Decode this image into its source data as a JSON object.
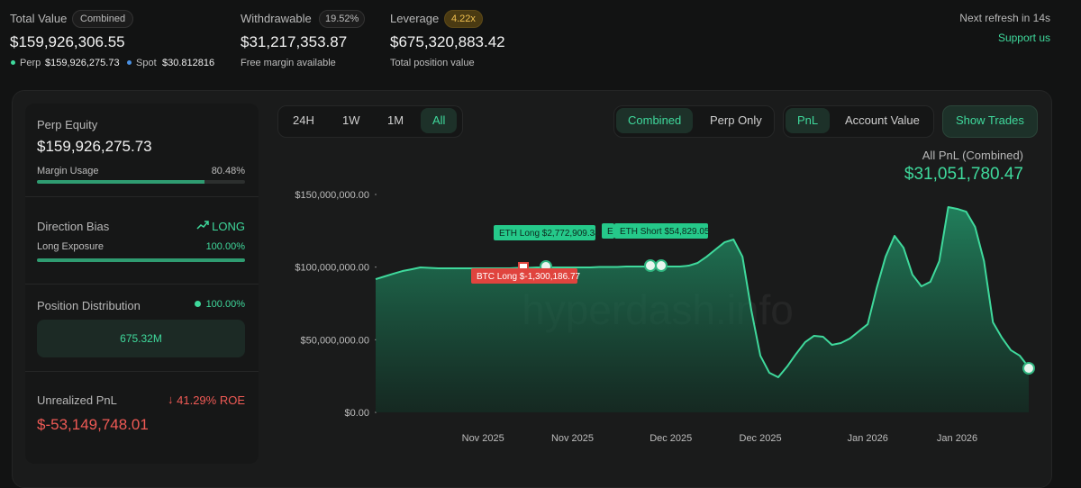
{
  "header": {
    "total_value": {
      "label": "Total Value",
      "badge": "Combined",
      "amount": "$159,926,306.55",
      "perp_label": "Perp",
      "perp_amount": "$159,926,275.73",
      "spot_label": "Spot",
      "spot_amount": "$30.812816"
    },
    "withdrawable": {
      "label": "Withdrawable",
      "badge": "19.52%",
      "amount": "$31,217,353.87",
      "note": "Free margin available"
    },
    "leverage": {
      "label": "Leverage",
      "badge": "4.22x",
      "amount": "$675,320,883.42",
      "note": "Total position value"
    },
    "refresh": "Next refresh in 14s",
    "support": "Support us"
  },
  "sidebar": {
    "perp_equity": {
      "label": "Perp Equity",
      "amount": "$159,926,275.73",
      "margin_label": "Margin Usage",
      "margin_usage": {
        "value": 80.48,
        "label": "80.48%"
      }
    },
    "direction": {
      "label": "Direction Bias",
      "bias": "LONG",
      "exposure_label": "Long Exposure",
      "long_exposure": {
        "value": 100,
        "label": "100.00%"
      }
    },
    "distribution": {
      "label": "Position Distribution",
      "share": "100.00%",
      "bar_label": "675.32M"
    },
    "unrealized": {
      "label": "Unrealized PnL",
      "roe": "41.29% ROE",
      "amount": "$-53,149,748.01"
    }
  },
  "controls": {
    "ranges": [
      "24H",
      "1W",
      "1M",
      "All"
    ],
    "modes": [
      "Combined",
      "Perp Only"
    ],
    "metrics": [
      "PnL",
      "Account Value"
    ],
    "trades": "Show Trades"
  },
  "chart_data": {
    "type": "area",
    "summary_label": "All PnL (Combined)",
    "summary_value": "$31,051,780.47",
    "watermark": "hyperdash.info",
    "color": "#3fd99c",
    "categories": [
      null,
      null,
      null,
      null,
      null,
      null,
      null,
      null,
      null,
      null,
      null,
      null,
      "Nov 2025",
      null,
      null,
      null,
      null,
      null,
      null,
      null,
      null,
      null,
      "Nov 2025",
      null,
      null,
      null,
      null,
      null,
      null,
      null,
      null,
      null,
      null,
      "Dec 2025",
      null,
      null,
      null,
      null,
      null,
      null,
      null,
      null,
      null,
      "Dec 2025",
      null,
      null,
      null,
      null,
      null,
      null,
      null,
      null,
      null,
      null,
      null,
      "Jan 2026",
      null,
      null,
      null,
      null,
      null,
      null,
      null,
      null,
      null,
      "Jan 2026",
      null,
      null,
      null,
      null,
      null,
      null,
      null,
      null
    ],
    "values": [
      91700000,
      93600000,
      95500000,
      97300000,
      98500000,
      99800000,
      99500000,
      99200000,
      99200000,
      99200000,
      99200000,
      99200000,
      99200000,
      99200000,
      99200000,
      99200000,
      99500000,
      99500000,
      99800000,
      99800000,
      99800000,
      99800000,
      99800000,
      99800000,
      99800000,
      100100000,
      100100000,
      100100000,
      100400000,
      100400000,
      100400000,
      100400000,
      100400000,
      100400000,
      100400000,
      101000000,
      102900000,
      107200000,
      112200000,
      117100000,
      119000000,
      107200000,
      70000000,
      39000000,
      27300000,
      24200000,
      31600000,
      40300000,
      48300000,
      52700000,
      52100000,
      46500000,
      47700000,
      50800000,
      55800000,
      60700000,
      85500000,
      107200000,
      121500000,
      113400000,
      94800000,
      86800000,
      89900000,
      104100000,
      141300000,
      140100000,
      138200000,
      127700000,
      104100000,
      62000000,
      51400000,
      42800000,
      39000000,
      31000000
    ],
    "ylim": [
      0,
      150000000
    ],
    "yticks": [
      {
        "value": 0,
        "label": "$0.00"
      },
      {
        "value": 50000000,
        "label": "$50,000,000.00"
      },
      {
        "value": 100000000,
        "label": "$100,000,000.00"
      },
      {
        "value": 150000000,
        "label": "$150,000,000.00"
      }
    ],
    "annotations": [
      "ETH Long $2,772,909.34",
      "E",
      "ETH Short $54,829.05",
      "BTC Long $-1,300,186.77"
    ]
  }
}
